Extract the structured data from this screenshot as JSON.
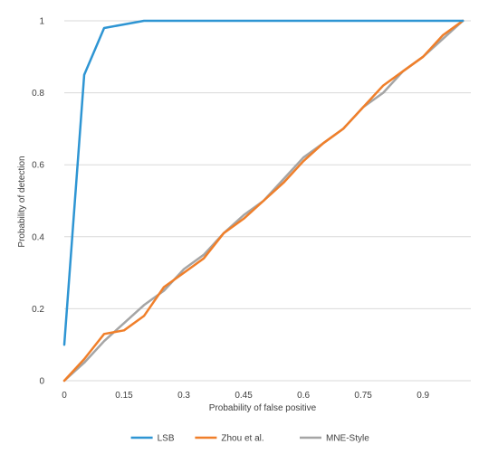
{
  "chart_data": {
    "type": "line",
    "title": "",
    "xlabel": "Probability of false positive",
    "ylabel": "Probability of detection",
    "xlim": [
      0,
      1.02
    ],
    "ylim": [
      0,
      1
    ],
    "x_ticks": [
      0,
      0.15,
      0.3,
      0.45,
      0.6,
      0.75,
      0.9
    ],
    "x_tick_labels": [
      "0",
      "0.15",
      "0.3",
      "0.45",
      "0.6",
      "0.75",
      "0.9"
    ],
    "y_ticks": [
      0,
      0.2,
      0.4,
      0.6,
      0.8,
      1
    ],
    "y_tick_labels": [
      "0",
      "0.2",
      "0.4",
      "0.6",
      "0.8",
      "1"
    ],
    "grid": "horizontal",
    "legend_position": "bottom",
    "series": [
      {
        "name": "LSB",
        "color": "#2e95d3",
        "points": [
          [
            0,
            0.1
          ],
          [
            0.05,
            0.85
          ],
          [
            0.1,
            0.98
          ],
          [
            0.15,
            0.99
          ],
          [
            0.2,
            1.0
          ],
          [
            0.4,
            1.0
          ],
          [
            0.6,
            1.0
          ],
          [
            0.8,
            1.0
          ],
          [
            1.0,
            1.0
          ]
        ]
      },
      {
        "name": "Zhou et al.",
        "color": "#f07f2a",
        "points": [
          [
            0,
            0
          ],
          [
            0.05,
            0.06
          ],
          [
            0.1,
            0.13
          ],
          [
            0.15,
            0.14
          ],
          [
            0.2,
            0.18
          ],
          [
            0.25,
            0.26
          ],
          [
            0.3,
            0.3
          ],
          [
            0.35,
            0.34
          ],
          [
            0.4,
            0.41
          ],
          [
            0.45,
            0.45
          ],
          [
            0.5,
            0.5
          ],
          [
            0.55,
            0.55
          ],
          [
            0.6,
            0.61
          ],
          [
            0.65,
            0.66
          ],
          [
            0.7,
            0.7
          ],
          [
            0.75,
            0.76
          ],
          [
            0.8,
            0.82
          ],
          [
            0.85,
            0.86
          ],
          [
            0.9,
            0.9
          ],
          [
            0.95,
            0.96
          ],
          [
            1.0,
            1.0
          ]
        ]
      },
      {
        "name": "MNE-Style",
        "color": "#a5a5a5",
        "points": [
          [
            0,
            0
          ],
          [
            0.05,
            0.05
          ],
          [
            0.1,
            0.11
          ],
          [
            0.15,
            0.16
          ],
          [
            0.2,
            0.21
          ],
          [
            0.25,
            0.25
          ],
          [
            0.3,
            0.31
          ],
          [
            0.35,
            0.35
          ],
          [
            0.4,
            0.41
          ],
          [
            0.45,
            0.46
          ],
          [
            0.5,
            0.5
          ],
          [
            0.55,
            0.56
          ],
          [
            0.6,
            0.62
          ],
          [
            0.65,
            0.66
          ],
          [
            0.7,
            0.7
          ],
          [
            0.75,
            0.76
          ],
          [
            0.8,
            0.8
          ],
          [
            0.85,
            0.86
          ],
          [
            0.9,
            0.9
          ],
          [
            0.95,
            0.95
          ],
          [
            1.0,
            1.0
          ]
        ]
      }
    ]
  }
}
